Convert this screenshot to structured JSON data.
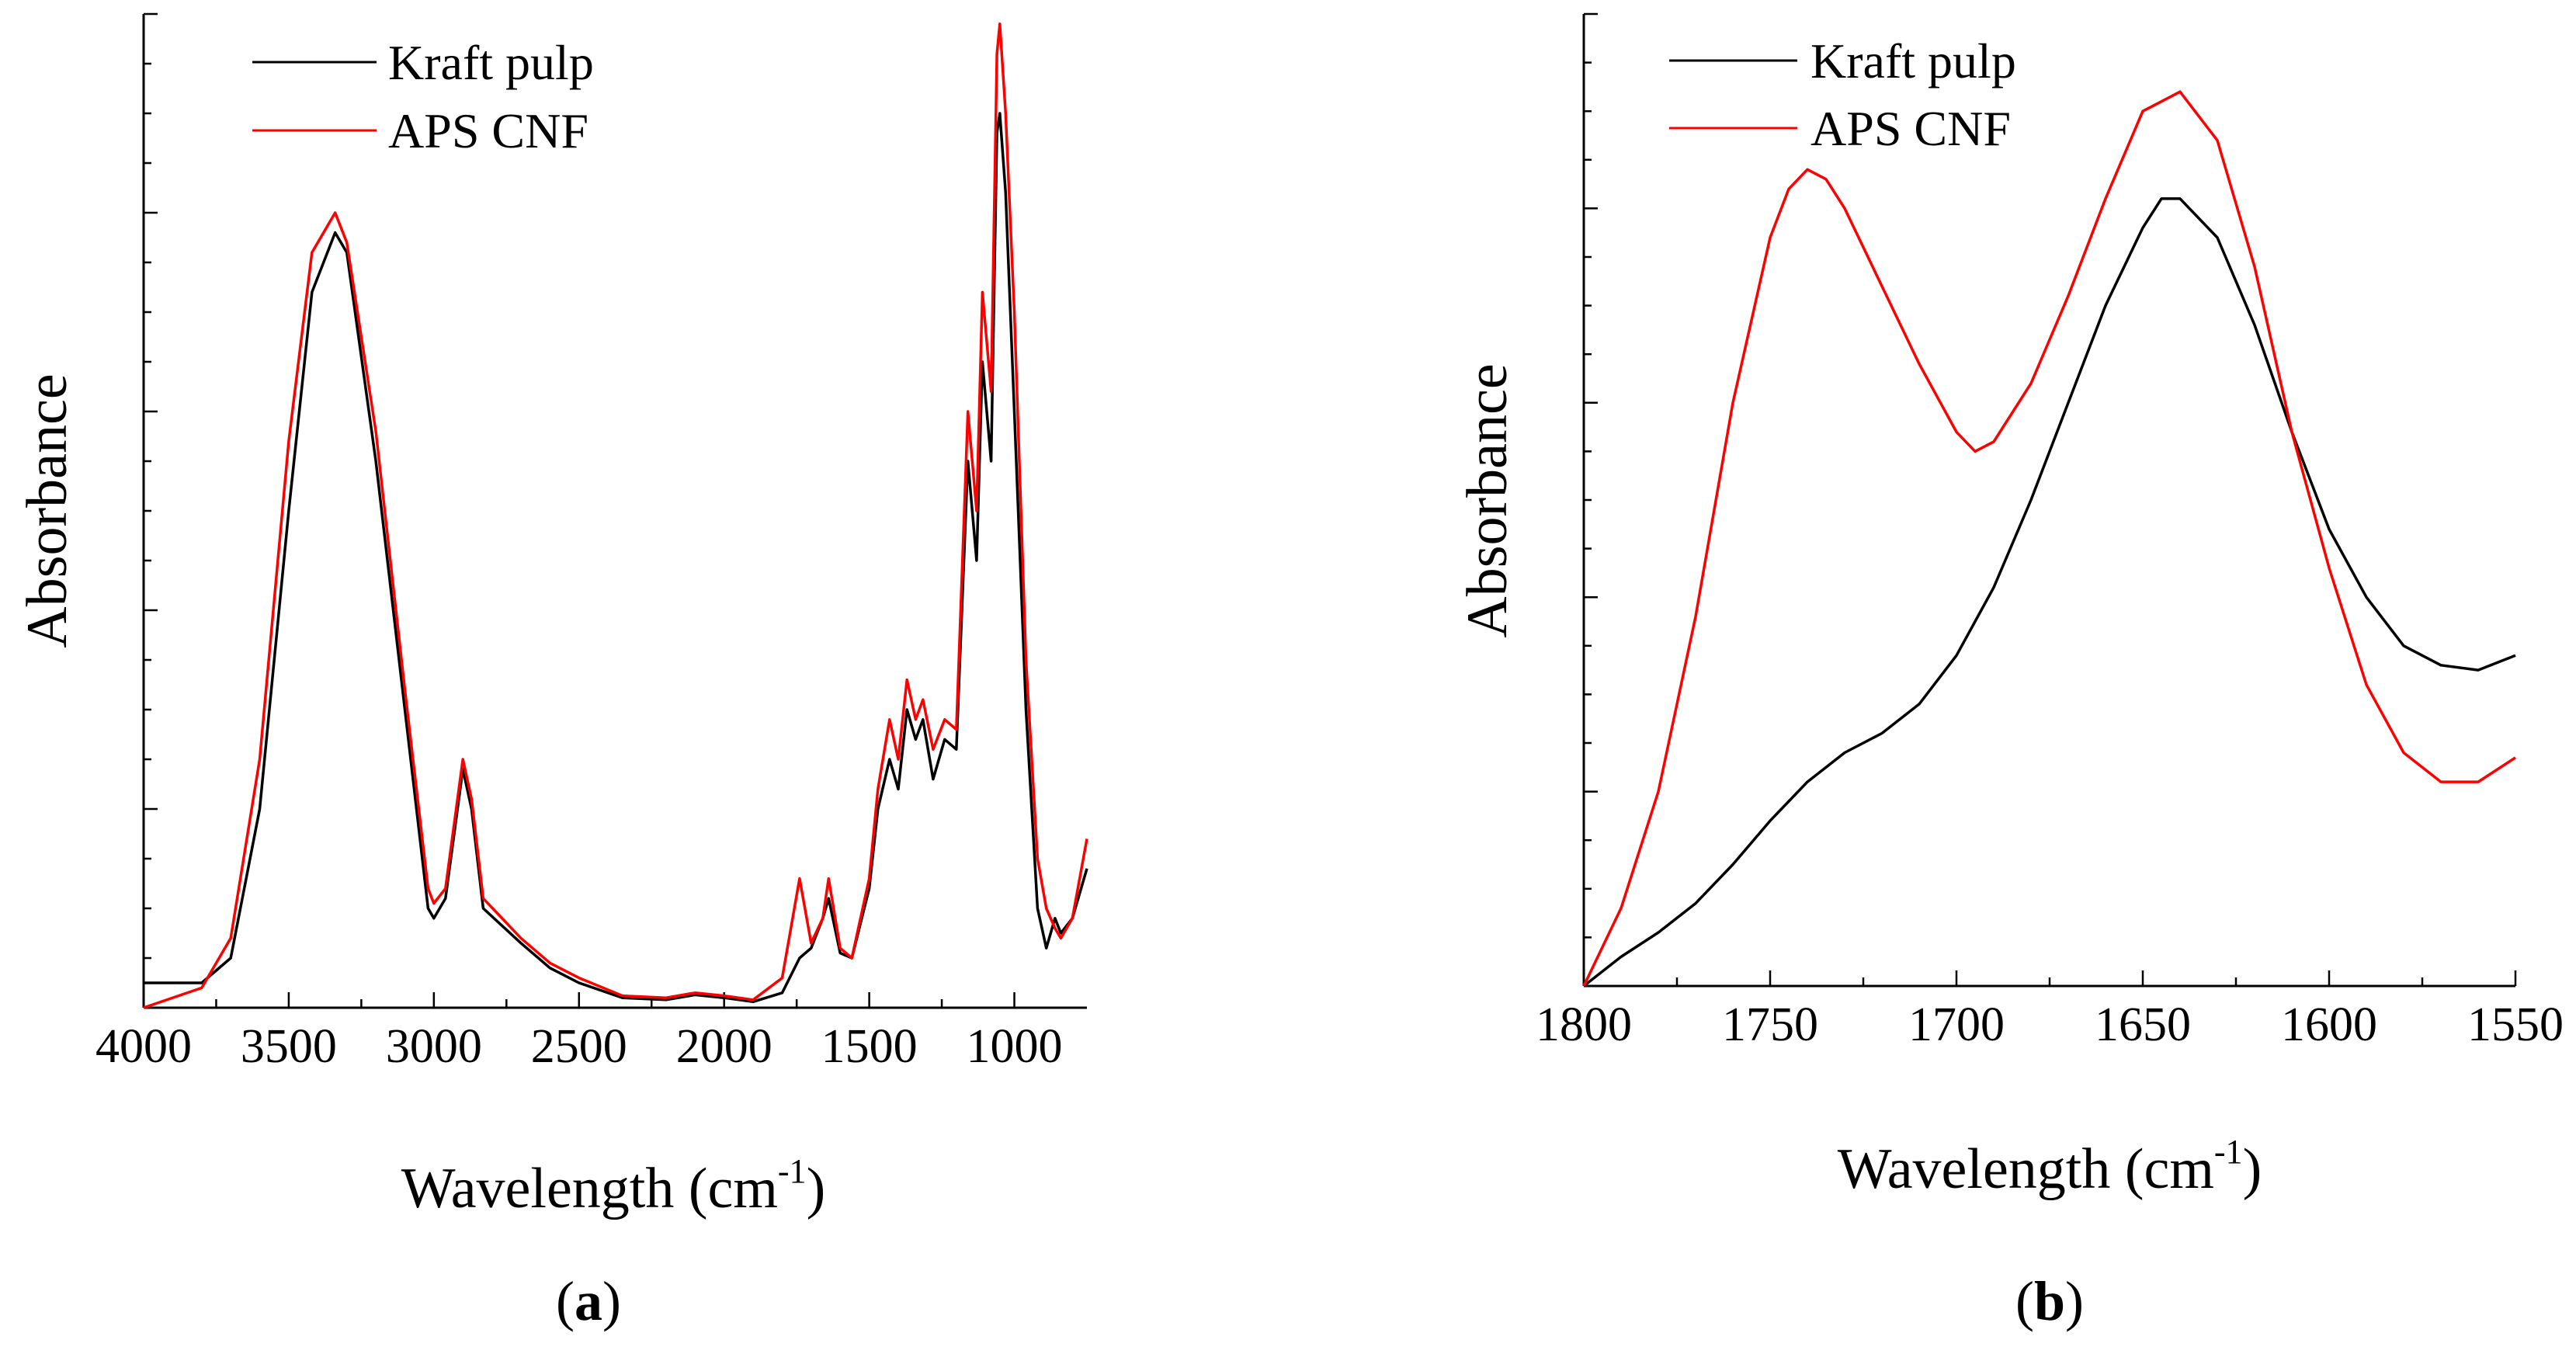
{
  "chart_data": [
    {
      "type": "line",
      "panel_label": "(a)",
      "panel_letter": "a",
      "xlabel": "Wavelength (cm",
      "xlabel_sup": "-1",
      "xlabel_close": ")",
      "ylabel": "Absorbance",
      "xlim": [
        4000,
        750
      ],
      "ylim": [
        0,
        1
      ],
      "x_ticks": [
        4000,
        3500,
        3000,
        2500,
        2000,
        1500,
        1000
      ],
      "legend_position": "top-left",
      "series": [
        {
          "name": "Kraft pulp",
          "color": "#000000",
          "points": [
            [
              4000,
              0.025
            ],
            [
              3800,
              0.025
            ],
            [
              3700,
              0.05
            ],
            [
              3600,
              0.2
            ],
            [
              3500,
              0.5
            ],
            [
              3420,
              0.72
            ],
            [
              3340,
              0.78
            ],
            [
              3300,
              0.76
            ],
            [
              3200,
              0.55
            ],
            [
              3100,
              0.3
            ],
            [
              3020,
              0.1
            ],
            [
              3000,
              0.09
            ],
            [
              2960,
              0.11
            ],
            [
              2900,
              0.24
            ],
            [
              2870,
              0.2
            ],
            [
              2830,
              0.1
            ],
            [
              2700,
              0.065
            ],
            [
              2600,
              0.04
            ],
            [
              2500,
              0.025
            ],
            [
              2350,
              0.01
            ],
            [
              2200,
              0.008
            ],
            [
              2100,
              0.013
            ],
            [
              2000,
              0.01
            ],
            [
              1900,
              0.006
            ],
            [
              1800,
              0.015
            ],
            [
              1740,
              0.05
            ],
            [
              1700,
              0.06
            ],
            [
              1660,
              0.09
            ],
            [
              1640,
              0.11
            ],
            [
              1600,
              0.055
            ],
            [
              1560,
              0.05
            ],
            [
              1500,
              0.12
            ],
            [
              1470,
              0.2
            ],
            [
              1430,
              0.25
            ],
            [
              1400,
              0.22
            ],
            [
              1370,
              0.3
            ],
            [
              1340,
              0.27
            ],
            [
              1315,
              0.29
            ],
            [
              1280,
              0.23
            ],
            [
              1240,
              0.27
            ],
            [
              1200,
              0.26
            ],
            [
              1160,
              0.55
            ],
            [
              1130,
              0.45
            ],
            [
              1110,
              0.65
            ],
            [
              1080,
              0.55
            ],
            [
              1060,
              0.88
            ],
            [
              1050,
              0.9
            ],
            [
              1030,
              0.82
            ],
            [
              1000,
              0.6
            ],
            [
              960,
              0.3
            ],
            [
              920,
              0.1
            ],
            [
              890,
              0.06
            ],
            [
              860,
              0.09
            ],
            [
              840,
              0.075
            ],
            [
              800,
              0.09
            ],
            [
              750,
              0.14
            ]
          ]
        },
        {
          "name": "APS CNF",
          "color": "#ff0000",
          "points": [
            [
              4000,
              0.0
            ],
            [
              3800,
              0.02
            ],
            [
              3700,
              0.07
            ],
            [
              3600,
              0.25
            ],
            [
              3500,
              0.57
            ],
            [
              3420,
              0.76
            ],
            [
              3340,
              0.8
            ],
            [
              3300,
              0.77
            ],
            [
              3200,
              0.58
            ],
            [
              3100,
              0.32
            ],
            [
              3020,
              0.12
            ],
            [
              3000,
              0.105
            ],
            [
              2960,
              0.12
            ],
            [
              2900,
              0.25
            ],
            [
              2870,
              0.21
            ],
            [
              2830,
              0.11
            ],
            [
              2700,
              0.07
            ],
            [
              2600,
              0.045
            ],
            [
              2500,
              0.03
            ],
            [
              2350,
              0.012
            ],
            [
              2200,
              0.01
            ],
            [
              2100,
              0.015
            ],
            [
              2000,
              0.012
            ],
            [
              1900,
              0.008
            ],
            [
              1800,
              0.03
            ],
            [
              1740,
              0.13
            ],
            [
              1700,
              0.065
            ],
            [
              1660,
              0.09
            ],
            [
              1640,
              0.13
            ],
            [
              1600,
              0.06
            ],
            [
              1560,
              0.05
            ],
            [
              1500,
              0.13
            ],
            [
              1470,
              0.22
            ],
            [
              1430,
              0.29
            ],
            [
              1400,
              0.25
            ],
            [
              1370,
              0.33
            ],
            [
              1340,
              0.29
            ],
            [
              1315,
              0.31
            ],
            [
              1280,
              0.26
            ],
            [
              1240,
              0.29
            ],
            [
              1200,
              0.28
            ],
            [
              1160,
              0.6
            ],
            [
              1130,
              0.5
            ],
            [
              1110,
              0.72
            ],
            [
              1080,
              0.62
            ],
            [
              1060,
              0.96
            ],
            [
              1050,
              0.99
            ],
            [
              1030,
              0.9
            ],
            [
              1000,
              0.7
            ],
            [
              960,
              0.35
            ],
            [
              920,
              0.15
            ],
            [
              890,
              0.1
            ],
            [
              860,
              0.08
            ],
            [
              840,
              0.07
            ],
            [
              800,
              0.09
            ],
            [
              750,
              0.17
            ]
          ]
        }
      ]
    },
    {
      "type": "line",
      "panel_label": "(b)",
      "panel_letter": "b",
      "xlabel": "Wavelength (cm",
      "xlabel_sup": "-1",
      "xlabel_close": ")",
      "ylabel": "Absorbance",
      "xlim": [
        1800,
        1550
      ],
      "ylim": [
        0,
        1
      ],
      "x_ticks": [
        1800,
        1750,
        1700,
        1650,
        1600,
        1550
      ],
      "legend_position": "top-left",
      "series": [
        {
          "name": "Kraft pulp",
          "color": "#000000",
          "points": [
            [
              1800,
              0.0
            ],
            [
              1790,
              0.03
            ],
            [
              1780,
              0.055
            ],
            [
              1770,
              0.085
            ],
            [
              1760,
              0.125
            ],
            [
              1750,
              0.17
            ],
            [
              1740,
              0.21
            ],
            [
              1730,
              0.24
            ],
            [
              1720,
              0.26
            ],
            [
              1710,
              0.29
            ],
            [
              1700,
              0.34
            ],
            [
              1690,
              0.41
            ],
            [
              1680,
              0.5
            ],
            [
              1670,
              0.6
            ],
            [
              1660,
              0.7
            ],
            [
              1650,
              0.78
            ],
            [
              1645,
              0.81
            ],
            [
              1640,
              0.81
            ],
            [
              1630,
              0.77
            ],
            [
              1620,
              0.68
            ],
            [
              1610,
              0.57
            ],
            [
              1600,
              0.47
            ],
            [
              1590,
              0.4
            ],
            [
              1580,
              0.35
            ],
            [
              1570,
              0.33
            ],
            [
              1560,
              0.325
            ],
            [
              1550,
              0.34
            ]
          ]
        },
        {
          "name": "APS CNF",
          "color": "#ff0000",
          "points": [
            [
              1800,
              0.0
            ],
            [
              1790,
              0.08
            ],
            [
              1780,
              0.2
            ],
            [
              1770,
              0.38
            ],
            [
              1760,
              0.6
            ],
            [
              1750,
              0.77
            ],
            [
              1745,
              0.82
            ],
            [
              1740,
              0.84
            ],
            [
              1735,
              0.83
            ],
            [
              1730,
              0.8
            ],
            [
              1720,
              0.72
            ],
            [
              1710,
              0.64
            ],
            [
              1700,
              0.57
            ],
            [
              1695,
              0.55
            ],
            [
              1690,
              0.56
            ],
            [
              1680,
              0.62
            ],
            [
              1670,
              0.71
            ],
            [
              1660,
              0.81
            ],
            [
              1650,
              0.9
            ],
            [
              1640,
              0.92
            ],
            [
              1630,
              0.87
            ],
            [
              1620,
              0.74
            ],
            [
              1610,
              0.57
            ],
            [
              1600,
              0.43
            ],
            [
              1590,
              0.31
            ],
            [
              1580,
              0.24
            ],
            [
              1570,
              0.21
            ],
            [
              1560,
              0.21
            ],
            [
              1550,
              0.235
            ]
          ]
        }
      ]
    }
  ]
}
